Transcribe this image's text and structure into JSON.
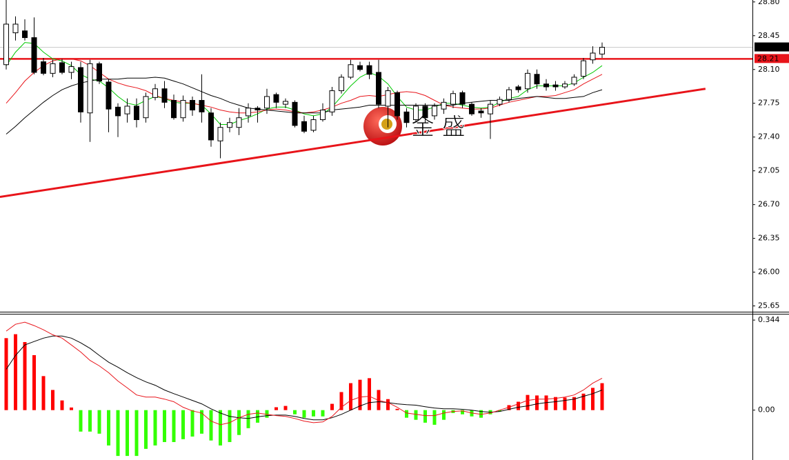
{
  "chart_data": [
    {
      "type": "candlestick",
      "open": [
        28.15,
        28.48,
        28.5,
        28.43,
        28.18,
        28.06,
        28.17,
        28.07,
        28.12,
        27.65,
        28.16,
        27.97,
        27.71,
        27.64,
        27.72,
        27.6,
        27.81,
        27.9,
        27.78,
        27.6,
        27.78,
        27.78,
        27.65,
        27.36,
        27.5,
        27.5,
        27.62,
        27.7,
        27.7,
        27.84,
        27.74,
        27.76,
        27.56,
        27.47,
        27.58,
        27.66,
        27.88,
        28.02,
        28.14,
        28.14,
        28.07,
        27.72,
        27.86,
        27.66,
        27.58,
        27.72,
        27.62,
        27.69,
        27.74,
        27.86,
        27.74,
        27.67,
        27.64,
        27.74,
        27.79,
        27.92,
        27.9,
        28.05,
        27.95,
        27.94,
        27.92,
        27.95,
        28.03,
        28.2,
        28.26
      ],
      "high": [
        28.82,
        28.65,
        28.62,
        28.64,
        28.22,
        28.2,
        28.21,
        28.18,
        28.18,
        28.2,
        28.18,
        28.0,
        27.75,
        27.8,
        27.8,
        27.86,
        27.95,
        27.98,
        27.84,
        27.83,
        27.82,
        28.05,
        27.7,
        27.55,
        27.6,
        27.7,
        27.75,
        27.72,
        27.9,
        27.86,
        27.8,
        27.78,
        27.62,
        27.62,
        27.75,
        27.92,
        28.05,
        28.2,
        28.18,
        28.18,
        28.2,
        27.92,
        27.88,
        27.7,
        27.75,
        27.75,
        27.75,
        27.8,
        27.88,
        27.88,
        27.76,
        27.7,
        27.78,
        27.82,
        27.92,
        27.94,
        28.1,
        28.1,
        28.0,
        27.98,
        27.98,
        28.05,
        28.22,
        28.34,
        28.38
      ],
      "low": [
        28.1,
        28.4,
        28.4,
        28.05,
        28.04,
        28.02,
        28.05,
        28.0,
        27.55,
        27.35,
        27.95,
        27.45,
        27.4,
        27.55,
        27.5,
        27.55,
        27.78,
        27.7,
        27.58,
        27.56,
        27.62,
        27.55,
        27.3,
        27.18,
        27.45,
        27.42,
        27.55,
        27.55,
        27.64,
        27.7,
        27.7,
        27.5,
        27.44,
        27.45,
        27.56,
        27.62,
        27.85,
        28.0,
        28.08,
        28.0,
        27.7,
        27.5,
        27.58,
        27.5,
        27.55,
        27.55,
        27.58,
        27.64,
        27.7,
        27.7,
        27.62,
        27.6,
        27.38,
        27.72,
        27.76,
        27.86,
        27.86,
        27.9,
        27.88,
        27.88,
        27.9,
        27.93,
        28.0,
        28.16,
        28.22
      ],
      "close": [
        28.57,
        28.57,
        28.43,
        28.07,
        28.06,
        28.16,
        28.07,
        28.13,
        27.66,
        28.16,
        27.98,
        27.69,
        27.62,
        27.72,
        27.58,
        27.82,
        27.9,
        27.76,
        27.6,
        27.78,
        27.68,
        27.66,
        27.37,
        27.5,
        27.55,
        27.6,
        27.7,
        27.68,
        27.82,
        27.76,
        27.77,
        27.52,
        27.46,
        27.58,
        27.68,
        27.88,
        28.02,
        28.15,
        28.1,
        28.05,
        27.74,
        27.88,
        27.62,
        27.55,
        27.72,
        27.6,
        27.72,
        27.76,
        27.85,
        27.74,
        27.64,
        27.65,
        27.74,
        27.79,
        27.89,
        27.89,
        28.06,
        27.95,
        27.92,
        27.92,
        27.95,
        28.02,
        28.19,
        28.27,
        28.33
      ],
      "up_color": "#ffffff",
      "down_color": "#000000",
      "series": [
        {
          "color": "#00c800",
          "values": [
            28.14,
            28.28,
            28.38,
            28.37,
            28.28,
            28.21,
            28.19,
            28.14,
            28.05,
            28.0,
            27.98,
            27.91,
            27.82,
            27.75,
            27.73,
            27.78,
            27.82,
            27.8,
            27.76,
            27.75,
            27.75,
            27.73,
            27.64,
            27.53,
            27.53,
            27.57,
            27.6,
            27.64,
            27.69,
            27.71,
            27.71,
            27.68,
            27.64,
            27.62,
            27.64,
            27.71,
            27.82,
            27.93,
            28.02,
            28.07,
            28.03,
            27.95,
            27.82,
            27.71,
            27.68,
            27.68,
            27.71,
            27.75,
            27.75,
            27.73,
            27.71,
            27.7,
            27.71,
            27.76,
            27.8,
            27.82,
            27.89,
            27.93,
            27.93,
            27.93,
            27.93,
            27.96,
            28.02,
            28.07,
            28.14
          ]
        },
        {
          "color": "#e8141a",
          "values": [
            27.75,
            27.86,
            27.98,
            28.07,
            28.14,
            28.19,
            28.21,
            28.21,
            28.19,
            28.14,
            28.07,
            28.0,
            27.96,
            27.93,
            27.91,
            27.88,
            27.83,
            27.8,
            27.78,
            27.76,
            27.75,
            27.73,
            27.71,
            27.68,
            27.66,
            27.65,
            27.65,
            27.66,
            27.68,
            27.69,
            27.68,
            27.66,
            27.65,
            27.66,
            27.68,
            27.71,
            27.75,
            27.78,
            27.82,
            27.83,
            27.82,
            27.84,
            27.86,
            27.87,
            27.86,
            27.83,
            27.78,
            27.73,
            27.71,
            27.7,
            27.69,
            27.69,
            27.7,
            27.73,
            27.76,
            27.78,
            27.8,
            27.82,
            27.82,
            27.83,
            27.86,
            27.89,
            27.95,
            28.0,
            28.05
          ]
        },
        {
          "color": "#000000",
          "values": [
            27.43,
            27.51,
            27.6,
            27.68,
            27.76,
            27.83,
            27.89,
            27.93,
            27.96,
            27.98,
            28.0,
            28.0,
            28.0,
            28.01,
            28.01,
            28.01,
            28.02,
            28.01,
            27.98,
            27.95,
            27.91,
            27.87,
            27.83,
            27.8,
            27.76,
            27.73,
            27.7,
            27.69,
            27.68,
            27.67,
            27.66,
            27.65,
            27.65,
            27.65,
            27.65,
            27.68,
            27.69,
            27.7,
            27.71,
            27.73,
            27.73,
            27.73,
            27.73,
            27.73,
            27.73,
            27.73,
            27.73,
            27.73,
            27.73,
            27.75,
            27.76,
            27.77,
            27.78,
            27.78,
            27.78,
            27.8,
            27.81,
            27.82,
            27.81,
            27.8,
            27.8,
            27.81,
            27.82,
            27.86,
            27.89
          ]
        }
      ],
      "trendline": {
        "color": "#e8141a",
        "x": [
          -0.67,
          75.1
        ],
        "y": [
          26.78,
          27.9
        ]
      },
      "price_tags": [
        {
          "value": 28.33,
          "color": "#c8c8c8",
          "bg": "#000000"
        },
        {
          "value": 28.21,
          "color": "#e8141a",
          "bg": "#e8141a"
        }
      ],
      "watermark": "金 盛",
      "ylim": [
        25.59,
        28.82
      ],
      "yticks": [
        {
          "value": 28.8,
          "label": "28.80"
        },
        {
          "value": 28.45,
          "label": "28.45"
        },
        {
          "value": 28.1,
          "label": "28.10"
        },
        {
          "value": 27.75,
          "label": "27.75"
        },
        {
          "value": 27.4,
          "label": "27.40"
        },
        {
          "value": 27.05,
          "label": "27.05"
        },
        {
          "value": 26.7,
          "label": "26.70"
        },
        {
          "value": 26.35,
          "label": "26.35"
        },
        {
          "value": 26.0,
          "label": "26.00"
        },
        {
          "value": 25.65,
          "label": "25.65"
        }
      ]
    },
    {
      "type": "macd",
      "histogram": [
        0.275,
        0.29,
        0.26,
        0.21,
        0.13,
        0.077,
        0.037,
        0.01,
        -0.082,
        -0.082,
        -0.09,
        -0.135,
        -0.175,
        -0.175,
        -0.175,
        -0.148,
        -0.135,
        -0.122,
        -0.122,
        -0.111,
        -0.101,
        -0.09,
        -0.116,
        -0.135,
        -0.122,
        -0.095,
        -0.069,
        -0.048,
        -0.029,
        0.011,
        0.016,
        -0.016,
        -0.029,
        -0.024,
        -0.024,
        0.024,
        0.069,
        0.103,
        0.116,
        0.122,
        0.077,
        0.042,
        0.005,
        -0.029,
        -0.037,
        -0.048,
        -0.056,
        -0.037,
        -0.011,
        -0.016,
        -0.024,
        -0.029,
        -0.016,
        -0.005,
        0.019,
        0.032,
        0.058,
        0.056,
        0.056,
        0.05,
        0.048,
        0.05,
        0.063,
        0.085,
        0.103
      ],
      "pos_color": "#ff0000",
      "neg_color": "#33ff00",
      "series": [
        {
          "color": "#000000",
          "values": [
            0.156,
            0.209,
            0.249,
            0.262,
            0.275,
            0.283,
            0.283,
            0.275,
            0.257,
            0.236,
            0.209,
            0.183,
            0.164,
            0.143,
            0.124,
            0.108,
            0.095,
            0.077,
            0.063,
            0.05,
            0.037,
            0.024,
            0.005,
            -0.011,
            -0.024,
            -0.029,
            -0.032,
            -0.026,
            -0.021,
            -0.019,
            -0.019,
            -0.024,
            -0.032,
            -0.037,
            -0.037,
            -0.029,
            -0.016,
            0,
            0.016,
            0.029,
            0.032,
            0.029,
            0.024,
            0.021,
            0.019,
            0.013,
            0.008,
            0.005,
            0.005,
            0.003,
            0,
            -0.005,
            -0.008,
            -0.005,
            0.003,
            0.011,
            0.016,
            0.024,
            0.029,
            0.032,
            0.037,
            0.042,
            0.053,
            0.063,
            0.077
          ]
        },
        {
          "color": "#e8141a",
          "values": [
            0.302,
            0.328,
            0.336,
            0.323,
            0.307,
            0.288,
            0.275,
            0.249,
            0.222,
            0.19,
            0.169,
            0.143,
            0.111,
            0.085,
            0.058,
            0.05,
            0.05,
            0.042,
            0.032,
            0.011,
            -0.003,
            -0.011,
            -0.042,
            -0.056,
            -0.048,
            -0.029,
            -0.016,
            -0.011,
            -0.016,
            -0.021,
            -0.024,
            -0.032,
            -0.042,
            -0.048,
            -0.045,
            -0.024,
            0.011,
            0.037,
            0.05,
            0.053,
            0.037,
            0.029,
            0.011,
            -0.011,
            -0.016,
            -0.021,
            -0.021,
            -0.011,
            -0.005,
            -0.003,
            -0.011,
            -0.016,
            -0.011,
            0,
            0.011,
            0.024,
            0.037,
            0.042,
            0.042,
            0.045,
            0.05,
            0.058,
            0.077,
            0.103,
            0.122
          ]
        }
      ],
      "ylim": [
        -0.18,
        0.368
      ],
      "yticks": [
        0.344,
        {
          "value": 0,
          "label": "0.00"
        }
      ]
    }
  ]
}
